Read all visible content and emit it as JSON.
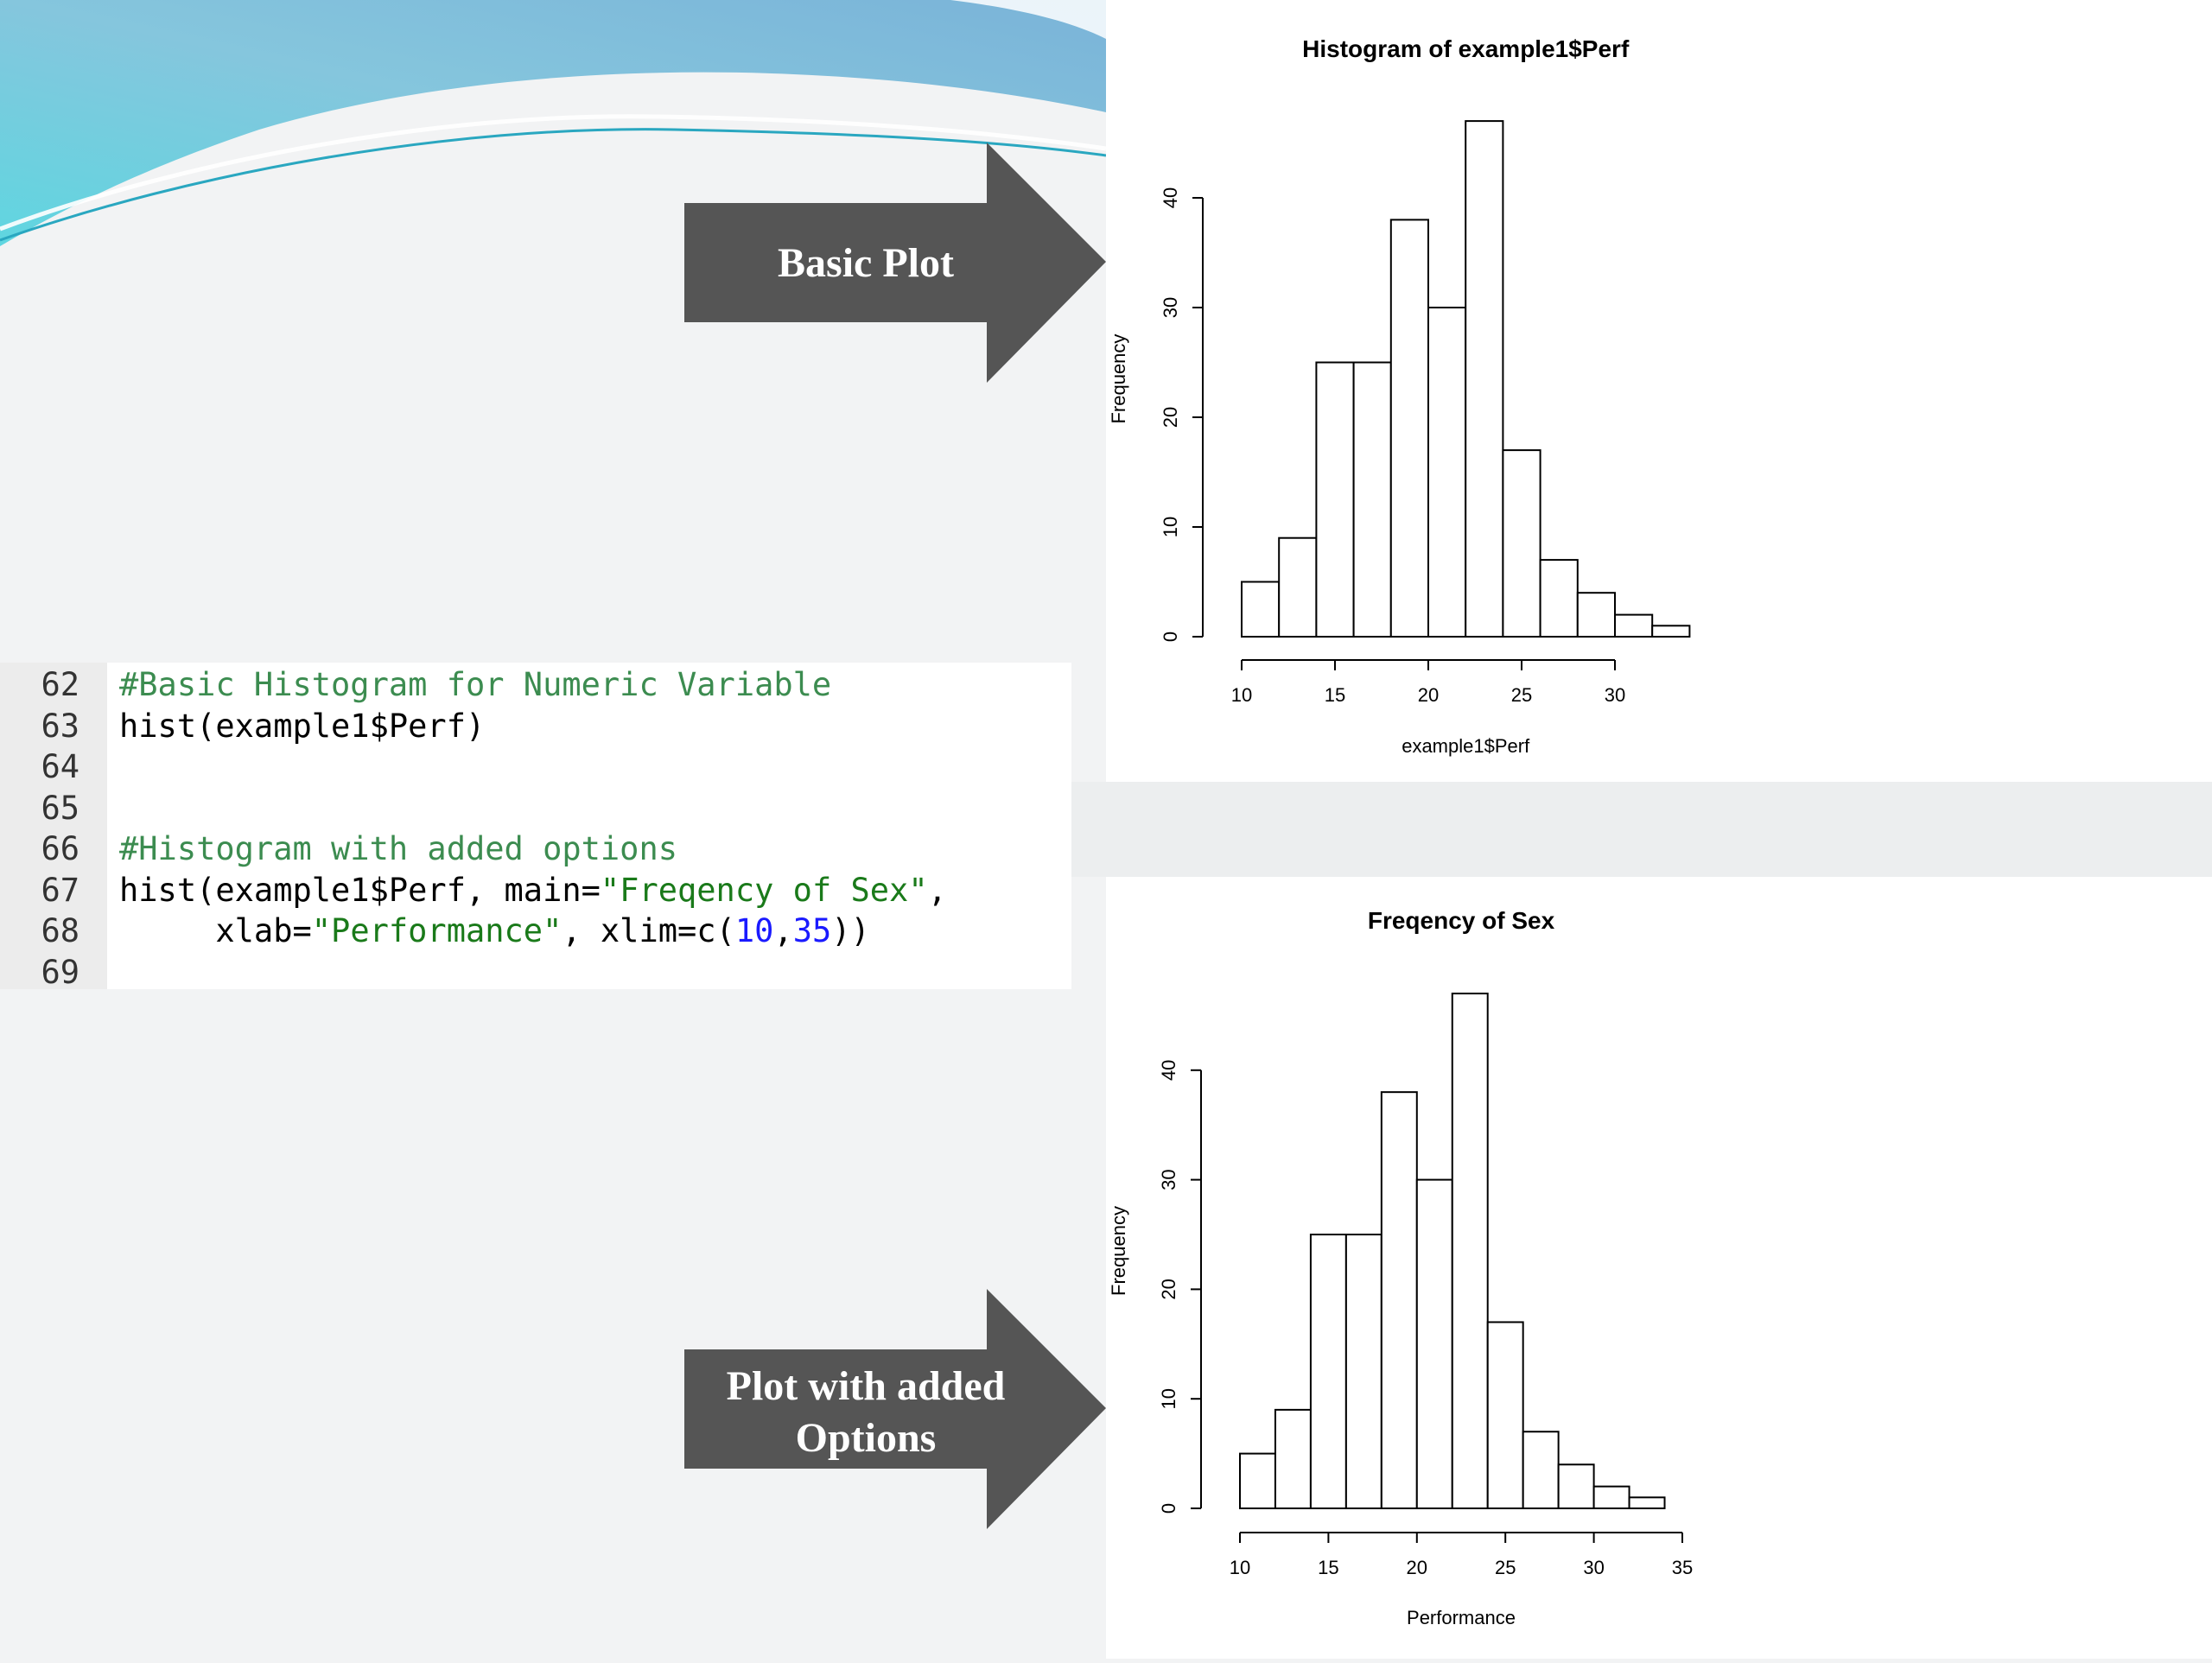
{
  "slide": {
    "arrows": [
      {
        "label_lines": [
          "Basic Plot"
        ],
        "color": "#555555"
      },
      {
        "label_lines": [
          "Plot with added",
          "Options"
        ],
        "color": "#555555"
      }
    ],
    "accent_colors": [
      "#7ec3dc",
      "#5fd0dc",
      "#ffffff"
    ]
  },
  "code_editor": {
    "lines": [
      {
        "num": "62",
        "tokens": [
          {
            "t": "#Basic Histogram for Numeric Variable",
            "k": "comment"
          }
        ]
      },
      {
        "num": "63",
        "tokens": [
          {
            "t": "hist(example1$Perf)",
            "k": "default"
          }
        ]
      },
      {
        "num": "64",
        "tokens": []
      },
      {
        "num": "65",
        "tokens": []
      },
      {
        "num": "66",
        "tokens": [
          {
            "t": "#Histogram with added options",
            "k": "comment"
          }
        ]
      },
      {
        "num": "67",
        "tokens": [
          {
            "t": "hist(example1$Perf, main=",
            "k": "default"
          },
          {
            "t": "\"Freqency of Sex\"",
            "k": "string"
          },
          {
            "t": ",",
            "k": "default"
          }
        ]
      },
      {
        "num": "68",
        "tokens": [
          {
            "t": "     xlab=",
            "k": "default"
          },
          {
            "t": "\"Performance\"",
            "k": "string"
          },
          {
            "t": ", xlim=c(",
            "k": "default"
          },
          {
            "t": "10",
            "k": "number"
          },
          {
            "t": ",",
            "k": "default"
          },
          {
            "t": "35",
            "k": "number"
          },
          {
            "t": "))",
            "k": "default"
          }
        ]
      },
      {
        "num": "69",
        "tokens": []
      }
    ]
  },
  "chart_data": [
    {
      "type": "bar",
      "title": "Histogram of example1$Perf",
      "xlabel": "example1$Perf",
      "ylabel": "Frequency",
      "bin_edges": [
        10,
        12,
        14,
        16,
        18,
        20,
        22,
        24,
        26,
        28,
        30,
        32,
        34
      ],
      "values": [
        5,
        9,
        25,
        25,
        38,
        30,
        47,
        17,
        7,
        4,
        2,
        1
      ],
      "xlim": [
        10,
        34
      ],
      "ylim": [
        0,
        47
      ],
      "x_ticks": [
        10,
        15,
        20,
        25,
        30
      ],
      "y_ticks": [
        0,
        10,
        20,
        30,
        40
      ],
      "grid": false
    },
    {
      "type": "bar",
      "title": "Freqency of Sex",
      "xlabel": "Performance",
      "ylabel": "Frequency",
      "bin_edges": [
        10,
        12,
        14,
        16,
        18,
        20,
        22,
        24,
        26,
        28,
        30,
        32,
        34
      ],
      "values": [
        5,
        9,
        25,
        25,
        38,
        30,
        47,
        17,
        7,
        4,
        2,
        1
      ],
      "xlim": [
        10,
        35
      ],
      "ylim": [
        0,
        47
      ],
      "x_ticks": [
        10,
        15,
        20,
        25,
        30,
        35
      ],
      "y_ticks": [
        0,
        10,
        20,
        30,
        40
      ],
      "grid": false
    }
  ]
}
